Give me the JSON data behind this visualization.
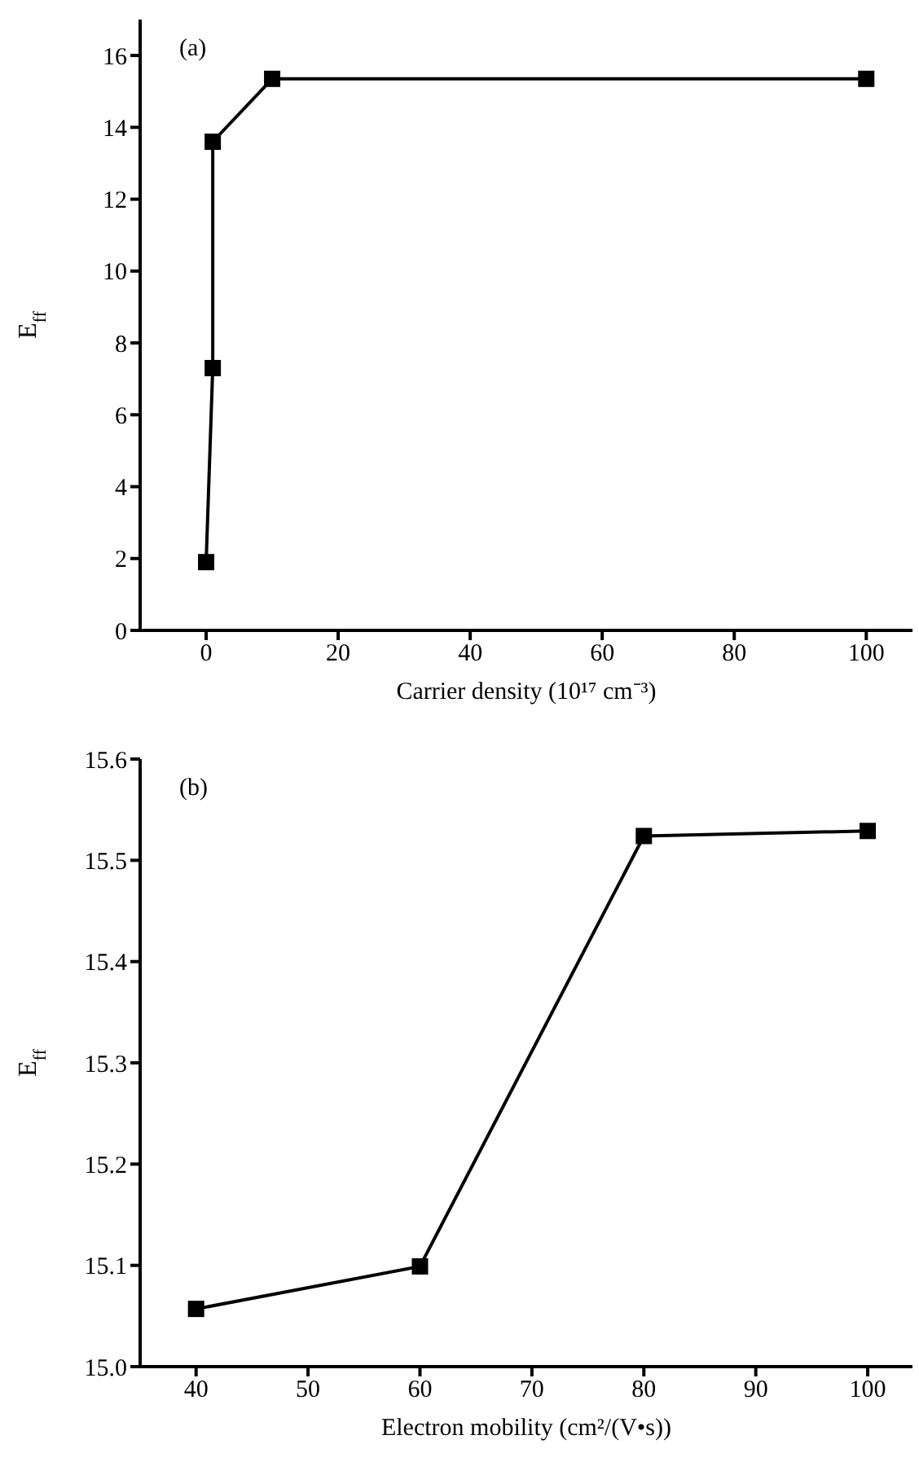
{
  "chart_data": [
    {
      "type": "line",
      "xlabel": "Carrier density (10¹⁷ cm⁻³)",
      "ylabel": "E$_{ff}$",
      "annotations": [
        "(a)"
      ],
      "x": [
        0,
        1,
        1,
        10,
        100
      ],
      "xlim": [
        -10,
        107
      ],
      "xticks": [
        0,
        20,
        40,
        60,
        80,
        100
      ],
      "ylim": [
        0,
        17
      ],
      "yticks": [
        0,
        2,
        4,
        6,
        8,
        10,
        12,
        14,
        16
      ],
      "series": [
        {
          "color": "#000000",
          "values": [
            1.9,
            7.3,
            13.6,
            15.35,
            15.35
          ]
        }
      ],
      "marker": "square",
      "line_style": "solid"
    },
    {
      "type": "line",
      "xlabel": "Electron mobility (cm²/(V•s))",
      "ylabel": "E$_{ff}$",
      "annotations": [
        "(b)"
      ],
      "x": [
        40,
        60,
        80,
        100
      ],
      "xlim": [
        35,
        104
      ],
      "xticks": [
        40,
        50,
        60,
        70,
        80,
        90,
        100
      ],
      "ylim": [
        15.0,
        15.6
      ],
      "yticks": [
        {
          "value": 15.0,
          "label": "15.0"
        },
        {
          "value": 15.1,
          "label": "15.1"
        },
        {
          "value": 15.2,
          "label": "15.2"
        },
        {
          "value": 15.3,
          "label": "15.3"
        },
        {
          "value": 15.4,
          "label": "15.4"
        },
        {
          "value": 15.5,
          "label": "15.5"
        },
        {
          "value": 15.6,
          "label": "15.6"
        }
      ],
      "series": [
        {
          "color": "#000000",
          "values": [
            15.057,
            15.099,
            15.524,
            15.529
          ]
        }
      ],
      "marker": "square",
      "line_style": "solid"
    }
  ]
}
